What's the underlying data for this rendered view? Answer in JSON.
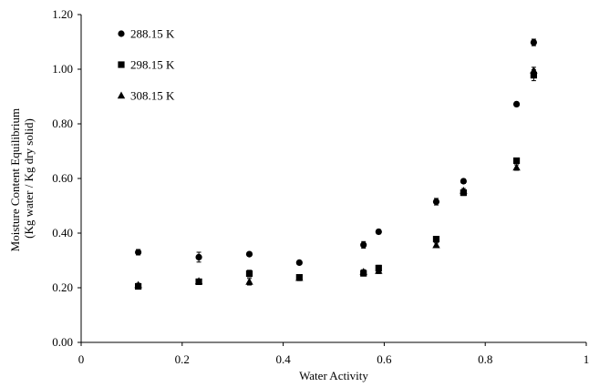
{
  "chart_data": {
    "type": "scatter",
    "title": "",
    "xlabel": "Water Activity",
    "ylabel": [
      "Moisture Content Equilibrium",
      "(Kg water / Kg dry solid)"
    ],
    "xlim": [
      0,
      1
    ],
    "ylim": [
      0,
      1.2
    ],
    "x_ticks": [
      0,
      0.2,
      0.4,
      0.6,
      0.8,
      1
    ],
    "x_tick_labels": [
      "0",
      "0.2",
      "0.4",
      "0.6",
      "0.8",
      "1"
    ],
    "y_ticks": [
      0,
      0.2,
      0.4,
      0.6,
      0.8,
      1.0,
      1.2
    ],
    "y_tick_labels": [
      "0.00",
      "0.20",
      "0.40",
      "0.60",
      "0.80",
      "1.00",
      "1.20"
    ],
    "grid": false,
    "legend_position": "top-left",
    "error_bars": true,
    "series": [
      {
        "name": "288.15 K",
        "marker": "circle",
        "x": [
          0.113,
          0.233,
          0.333,
          0.432,
          0.559,
          0.589,
          0.703,
          0.757,
          0.862,
          0.896
        ],
        "y": [
          0.33,
          0.312,
          0.323,
          0.292,
          0.357,
          0.405,
          0.515,
          0.59,
          0.872,
          1.098
        ],
        "err": [
          0.01,
          0.018,
          0.006,
          0.006,
          0.012,
          0.008,
          0.012,
          0.008,
          0.008,
          0.012
        ]
      },
      {
        "name": "298.15 K",
        "marker": "square",
        "x": [
          0.113,
          0.233,
          0.333,
          0.432,
          0.559,
          0.589,
          0.703,
          0.757,
          0.862,
          0.896
        ],
        "y": [
          0.205,
          0.222,
          0.252,
          0.238,
          0.253,
          0.272,
          0.378,
          0.548,
          0.665,
          0.978
        ],
        "err": [
          0.008,
          0.006,
          0.012,
          0.01,
          0.01,
          0.01,
          0.008,
          0.01,
          0.008,
          0.02
        ]
      },
      {
        "name": "308.15 K",
        "marker": "triangle",
        "x": [
          0.113,
          0.233,
          0.333,
          0.432,
          0.559,
          0.589,
          0.703,
          0.757,
          0.862,
          0.896
        ],
        "y": [
          0.21,
          0.224,
          0.222,
          0.236,
          0.258,
          0.262,
          0.356,
          0.555,
          0.64,
          0.995
        ],
        "err": [
          0.006,
          0.006,
          0.012,
          0.01,
          0.008,
          0.01,
          0.008,
          0.008,
          0.01,
          0.012
        ]
      }
    ]
  }
}
